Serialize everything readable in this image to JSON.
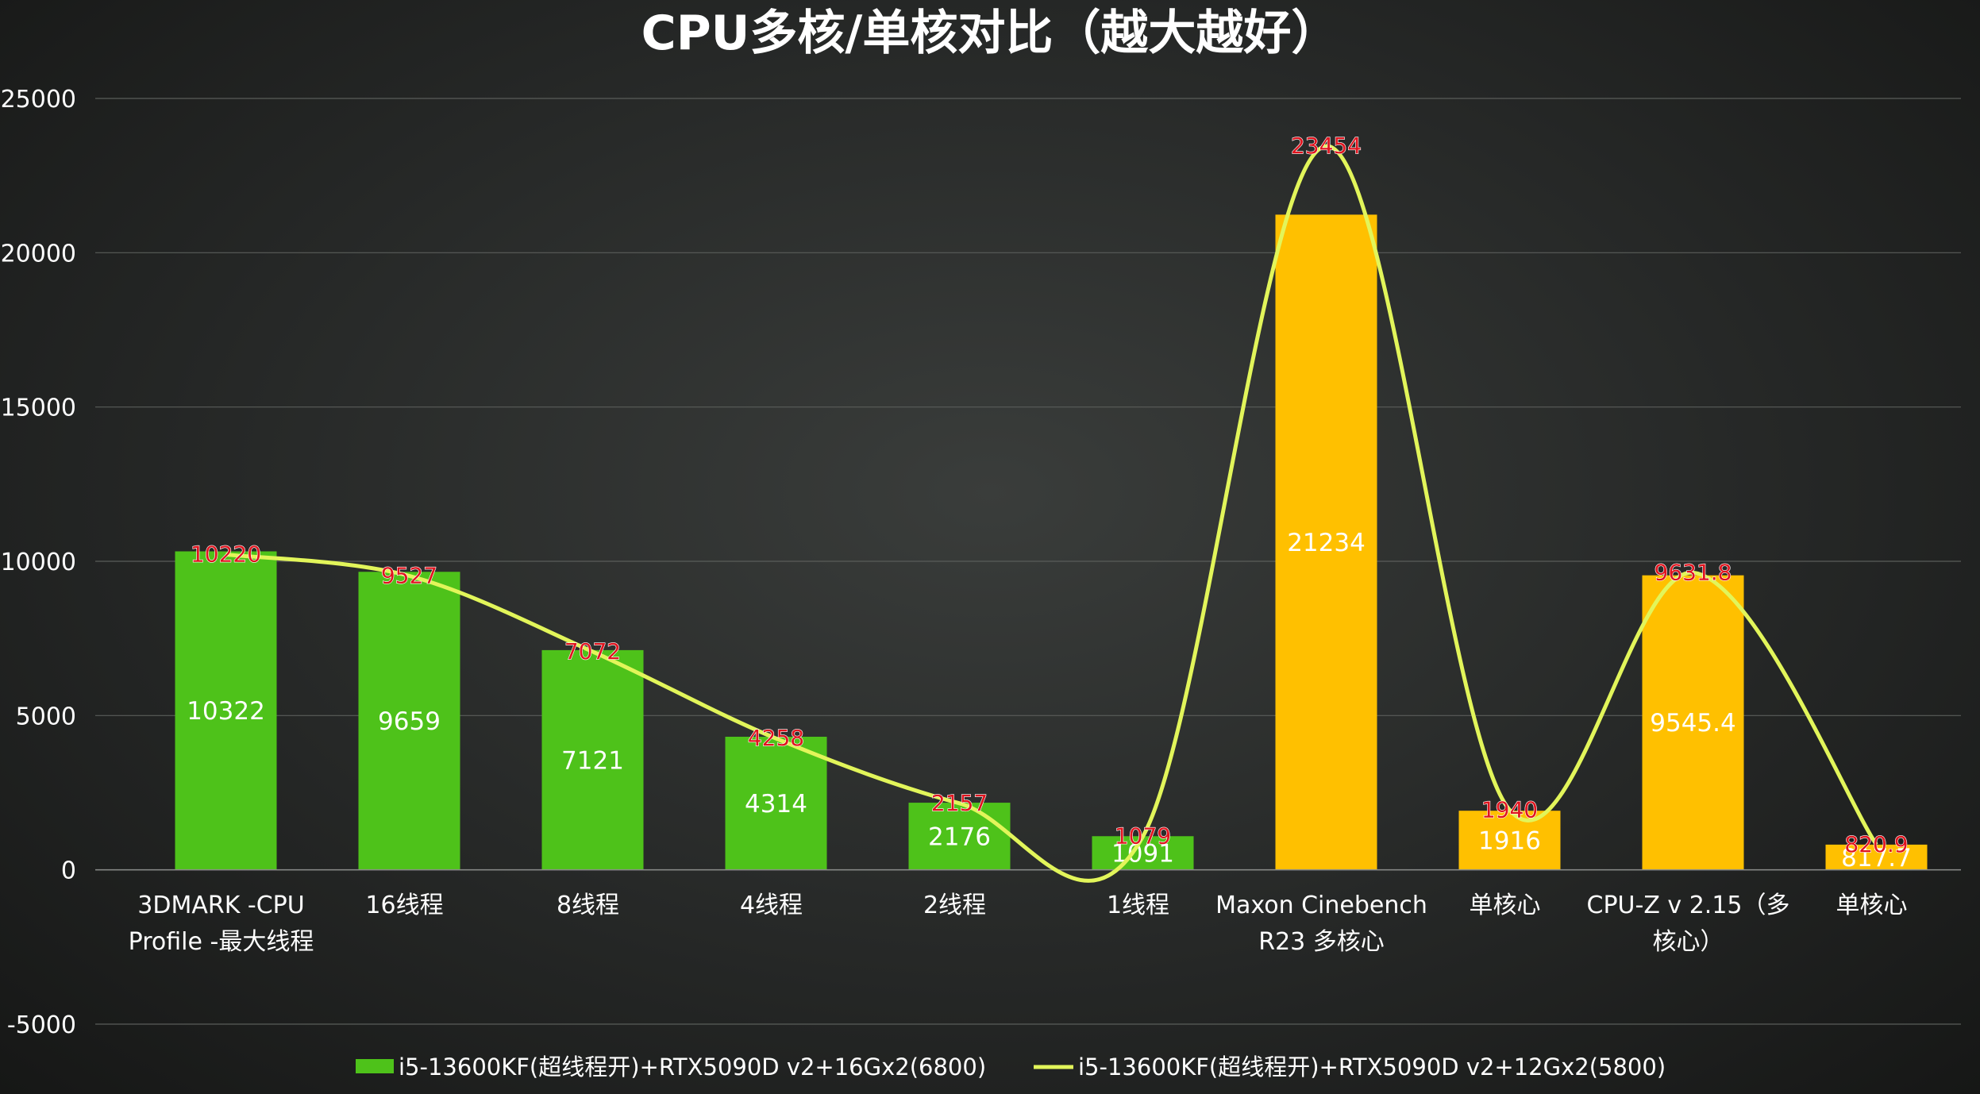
{
  "chart_data": {
    "type": "bar",
    "title": "CPU多核/单核对比（越大越好）",
    "ylim": [
      -5000,
      25000
    ],
    "yticks": [
      25000,
      20000,
      15000,
      10000,
      5000,
      0,
      -5000
    ],
    "grid": true,
    "legend_position": "bottom",
    "categories": [
      [
        "3DMARK -CPU",
        "Profile -最大线程"
      ],
      [
        "16线程"
      ],
      [
        "8线程"
      ],
      [
        "4线程"
      ],
      [
        "2线程"
      ],
      [
        "1线程"
      ],
      [
        "Maxon Cinebench",
        "R23 多核心"
      ],
      [
        "单核心"
      ],
      [
        "CPU-Z v 2.15（多",
        "核心）"
      ],
      [
        "单核心"
      ]
    ],
    "series": [
      {
        "name": "i5-13600KF(超线程开)+RTX5090D v2+16Gx2(6800)",
        "type": "bar",
        "values": [
          10322,
          9659,
          7121,
          4314,
          2176,
          1091,
          21234,
          1916,
          9545.4,
          817.7
        ],
        "labels": [
          "10322",
          "9659",
          "7121",
          "4314",
          "2176",
          "1091",
          "21234",
          "1916",
          "9545.4",
          "817.7"
        ],
        "colors": [
          "#4ec21a",
          "#4ec21a",
          "#4ec21a",
          "#4ec21a",
          "#4ec21a",
          "#4ec21a",
          "#ffc000",
          "#ffc000",
          "#ffc000",
          "#ffc000"
        ]
      },
      {
        "name": "i5-13600KF(超线程开)+RTX5090D v2+12Gx2(5800)",
        "type": "line",
        "smooth": true,
        "color": "#e2f55a",
        "values": [
          10220,
          9527,
          7072,
          4258,
          2157,
          1079,
          23454,
          1940,
          9631.8,
          820.9
        ],
        "labels": [
          "10220",
          "9527",
          "7072",
          "4258",
          "2157",
          "1079",
          "23454",
          "1940",
          "9631.8",
          "820.9"
        ]
      }
    ],
    "legend_bar_color": "#4ec21a"
  }
}
